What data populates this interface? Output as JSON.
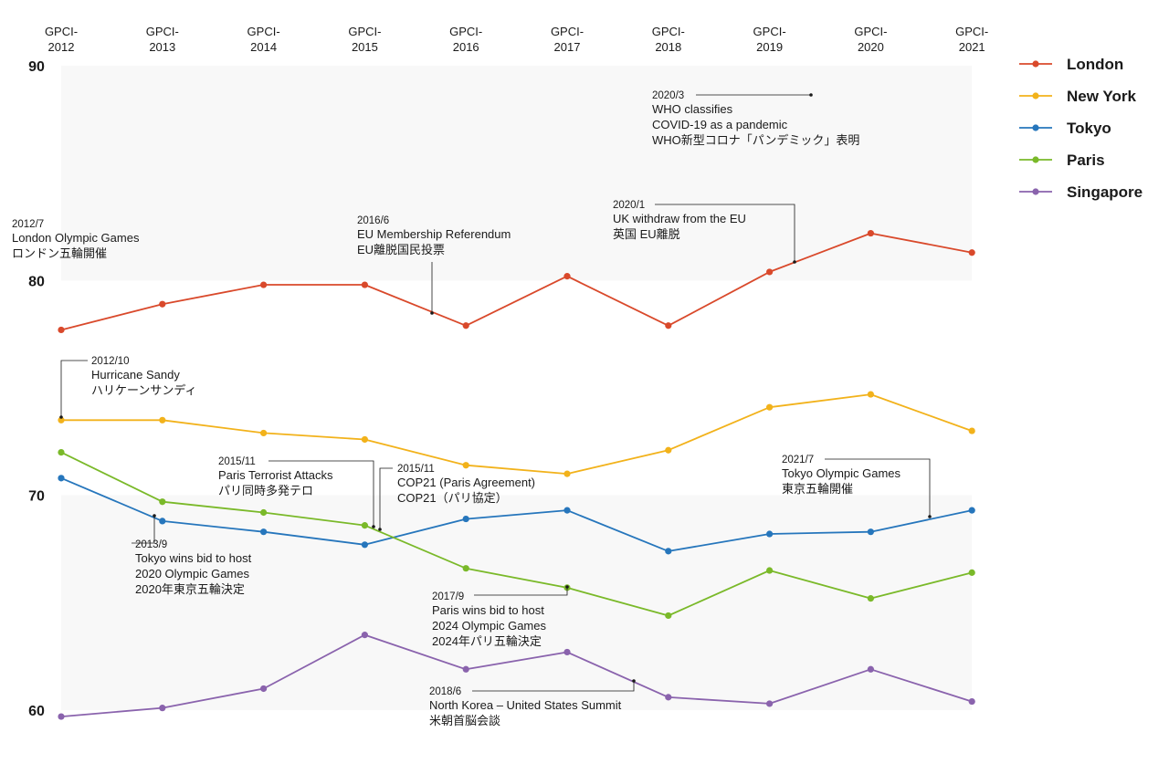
{
  "chart_data": {
    "type": "line",
    "categories": [
      "GPCI-2012",
      "GPCI-2013",
      "GPCI-2014",
      "GPCI-2015",
      "GPCI-2016",
      "GPCI-2017",
      "GPCI-2018",
      "GPCI-2019",
      "GPCI-2020",
      "GPCI-2021"
    ],
    "category_lines": [
      [
        "GPCI-",
        "2012"
      ],
      [
        "GPCI-",
        "2013"
      ],
      [
        "GPCI-",
        "2014"
      ],
      [
        "GPCI-",
        "2015"
      ],
      [
        "GPCI-",
        "2016"
      ],
      [
        "GPCI-",
        "2017"
      ],
      [
        "GPCI-",
        "2018"
      ],
      [
        "GPCI-",
        "2019"
      ],
      [
        "GPCI-",
        "2020"
      ],
      [
        "GPCI-",
        "2021"
      ]
    ],
    "ylim": [
      60,
      90
    ],
    "yticks": [
      "60",
      "70",
      "80",
      "90"
    ],
    "grid": false,
    "legend_position": "top-right",
    "series": [
      {
        "name": "London",
        "color": "#d9492b",
        "values": [
          77.7,
          78.9,
          79.8,
          79.8,
          77.9,
          80.2,
          77.9,
          80.4,
          82.2,
          81.3
        ]
      },
      {
        "name": "New York",
        "color": "#f2b21b",
        "values": [
          73.5,
          73.5,
          72.9,
          72.6,
          71.4,
          71.0,
          72.1,
          74.1,
          74.7,
          73.0
        ]
      },
      {
        "name": "Tokyo",
        "color": "#2676bc",
        "values": [
          70.8,
          68.8,
          68.3,
          67.7,
          68.9,
          69.3,
          67.4,
          68.2,
          68.3,
          69.3
        ]
      },
      {
        "name": "Paris",
        "color": "#7ab929",
        "values": [
          72.0,
          69.7,
          69.2,
          68.6,
          66.6,
          65.7,
          64.4,
          66.5,
          65.2,
          66.4
        ]
      },
      {
        "name": "Singapore",
        "color": "#8a63ad",
        "values": [
          59.7,
          60.1,
          61.0,
          63.5,
          61.9,
          62.7,
          60.6,
          60.3,
          61.9,
          60.4
        ]
      }
    ],
    "annotations": [
      {
        "date": "2012/7",
        "lines": [
          "London Olympic Games",
          "ロンドン五輪開催"
        ]
      },
      {
        "date": "2012/10",
        "lines": [
          "Hurricane Sandy",
          "ハリケーンサンディ"
        ]
      },
      {
        "date": "2013/9",
        "lines": [
          "Tokyo wins bid to host",
          "2020 Olympic Games",
          "2020年東京五輪決定"
        ]
      },
      {
        "date": "2015/11",
        "lines": [
          "Paris Terrorist Attacks",
          "パリ同時多発テロ"
        ]
      },
      {
        "date": "2015/11",
        "lines": [
          "COP21 (Paris Agreement)",
          "COP21（パリ協定）"
        ]
      },
      {
        "date": "2016/6",
        "lines": [
          "EU Membership Referendum",
          "EU離脱国民投票"
        ]
      },
      {
        "date": "2017/9",
        "lines": [
          "Paris wins bid to host",
          "2024 Olympic Games",
          "2024年パリ五輪決定"
        ]
      },
      {
        "date": "2018/6",
        "lines": [
          "North Korea – United States Summit",
          "米朝首脳会談"
        ]
      },
      {
        "date": "2020/1",
        "lines": [
          "UK withdraw from the EU",
          "英国 EU離脱"
        ]
      },
      {
        "date": "2020/3",
        "lines": [
          "WHO classifies",
          "COVID-19 as a pandemic",
          "WHO新型コロナ「パンデミック」表明"
        ]
      },
      {
        "date": "2021/7",
        "lines": [
          "Tokyo Olympic Games",
          "東京五輪開催"
        ]
      }
    ]
  }
}
